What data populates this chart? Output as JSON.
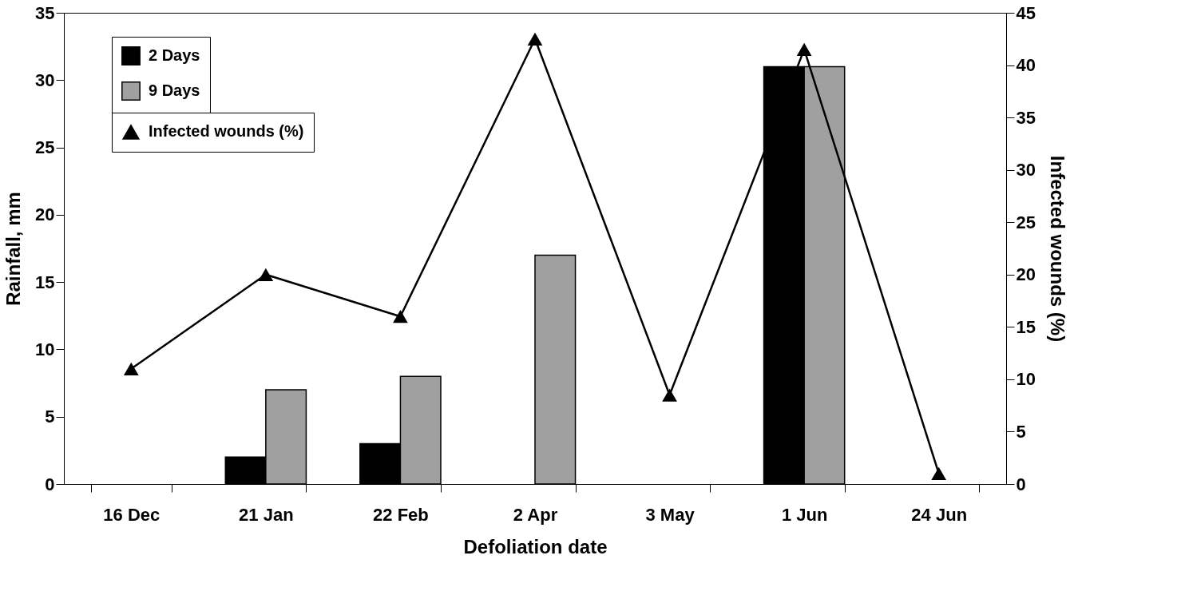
{
  "chart_data": {
    "type": "bar",
    "xlabel": "Defoliation date",
    "ylabel": "Rainfall, mm",
    "y2label": "Infected wounds (%)",
    "categories": [
      "16 Dec",
      "21 Jan",
      "22 Feb",
      "2 Apr",
      "3 May",
      "1 Jun",
      "24 Jun"
    ],
    "series": [
      {
        "name": "2 Days",
        "color": "#000000",
        "values": [
          null,
          2,
          3,
          null,
          null,
          31,
          null
        ]
      },
      {
        "name": "9 Days",
        "color": "#a0a0a0",
        "values": [
          null,
          7,
          8,
          17,
          null,
          31,
          null
        ]
      },
      {
        "name": "Infected wounds (%)",
        "type": "line",
        "axis": "y2",
        "color": "#000000",
        "marker": "triangle",
        "line_style": "solid",
        "values": [
          11,
          20,
          16,
          42.5,
          8.5,
          41.5,
          1
        ]
      }
    ],
    "ylim": [
      0,
      35
    ],
    "yticks": [
      0,
      5,
      10,
      15,
      20,
      25,
      30,
      35
    ],
    "y2lim": [
      0,
      45
    ],
    "y2ticks": [
      0,
      5,
      10,
      15,
      20,
      25,
      30,
      35,
      40,
      45
    ],
    "grid": false,
    "legend": "top left"
  }
}
